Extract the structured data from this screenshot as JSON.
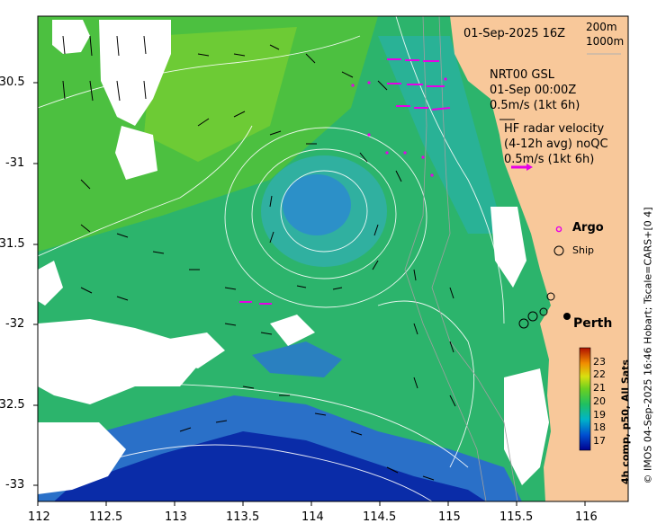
{
  "map": {
    "date_label": "01-Sep-2025 16Z",
    "contour_labels": [
      "200m",
      "1000m"
    ],
    "gsl": {
      "title": "NRT00 GSL",
      "time": "01-Sep 00:00Z",
      "scale": "0.5m/s (1kt 6h)"
    },
    "hf_radar": {
      "title": "HF radar velocity",
      "subtitle": "(4-12h avg) noQC",
      "scale": "0.5m/s (1kt 6h)"
    },
    "legend": {
      "argo": "Argo",
      "ship": "Ship"
    },
    "place": "Perth",
    "x_ticks": [
      "112",
      "112.5",
      "113",
      "113.5",
      "114",
      "114.5",
      "115",
      "115.5",
      "116"
    ],
    "y_ticks": [
      "-30.5",
      "-31",
      "-31.5",
      "-32",
      "-32.5",
      "-33"
    ],
    "colorbar": {
      "ticks": [
        "23",
        "22",
        "21",
        "20",
        "19",
        "18",
        "17"
      ],
      "title": "4h comp, p50, All Sats"
    },
    "credit": "© IMOS 04-Sep-2025 16:46 Hobart; Tscale=CARS+[0 4]",
    "colors": {
      "land": "#f8c89a",
      "cold": "#0a2ca8",
      "warm": "#3cbc3c",
      "argo": "#e600e6"
    }
  }
}
